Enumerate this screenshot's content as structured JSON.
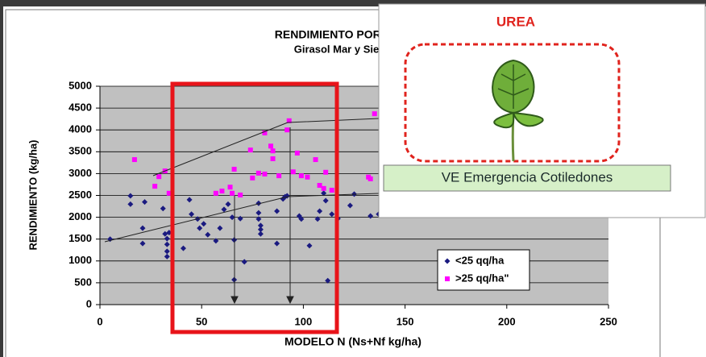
{
  "chart_data": {
    "type": "scatter",
    "title": "RENDIMIENTO POR MO",
    "subtitle": "Girasol Mar y Sier",
    "x_label": "MODELO N (Ns+Nf kg/ha)",
    "y_label": "RENDIMIENTO (kg/ha)",
    "xlim": [
      0,
      250
    ],
    "xticks": [
      0,
      50,
      100,
      150,
      200,
      250
    ],
    "ylim": [
      0,
      5000
    ],
    "yticks": [
      0,
      500,
      1000,
      1500,
      2000,
      2500,
      3000,
      3500,
      4000,
      4500,
      5000
    ],
    "grid": true,
    "legend": "lower right",
    "series": [
      {
        "name": "<25 qq/ha",
        "color": "#1a1a80",
        "marker": "diamond",
        "x": [
          5,
          15,
          15,
          21,
          21,
          22,
          31,
          32,
          33,
          33,
          33,
          33,
          34,
          41,
          44,
          45,
          48,
          49,
          51,
          53,
          57,
          59,
          61,
          63,
          65,
          66,
          66,
          69,
          71,
          78,
          78,
          78,
          79,
          79,
          79,
          87,
          87,
          90,
          91,
          92,
          98,
          99,
          103,
          107,
          108,
          110,
          111,
          112,
          114,
          117,
          123,
          125,
          133,
          137
        ],
        "values": [
          1500,
          2490,
          2300,
          1750,
          1400,
          2350,
          2200,
          1620,
          1510,
          1380,
          1220,
          1100,
          1650,
          1290,
          2400,
          2070,
          1960,
          1750,
          1850,
          1600,
          1460,
          1750,
          2180,
          2300,
          2000,
          1480,
          570,
          1970,
          980,
          2320,
          2100,
          1960,
          1810,
          1720,
          1620,
          2140,
          1400,
          2420,
          2470,
          2490,
          2030,
          1960,
          1350,
          1960,
          2140,
          2550,
          2380,
          550,
          2070,
          1970,
          2270,
          2530,
          2030,
          2070
        ]
      },
      {
        "name": ">25 qq/ha\"",
        "color": "#ff00ff",
        "marker": "square",
        "x": [
          17,
          27,
          29,
          32,
          34,
          57,
          60,
          64,
          65,
          66,
          69,
          74,
          75,
          78,
          81,
          81,
          84,
          85,
          85,
          88,
          92,
          93,
          95,
          97,
          99,
          102,
          106,
          108,
          110,
          111,
          114,
          132,
          133,
          135
        ],
        "values": [
          3320,
          2710,
          2930,
          3060,
          2550,
          2550,
          2600,
          2690,
          2550,
          3100,
          2510,
          3540,
          2900,
          3010,
          3930,
          2990,
          3630,
          3520,
          3340,
          2950,
          4000,
          4210,
          3040,
          3470,
          2950,
          2920,
          3320,
          2730,
          2660,
          3030,
          2620,
          2920,
          2880,
          4370
        ]
      }
    ]
  },
  "overlay": {
    "title": "UREA",
    "caption": "VE Emergencia Cotiledones"
  }
}
